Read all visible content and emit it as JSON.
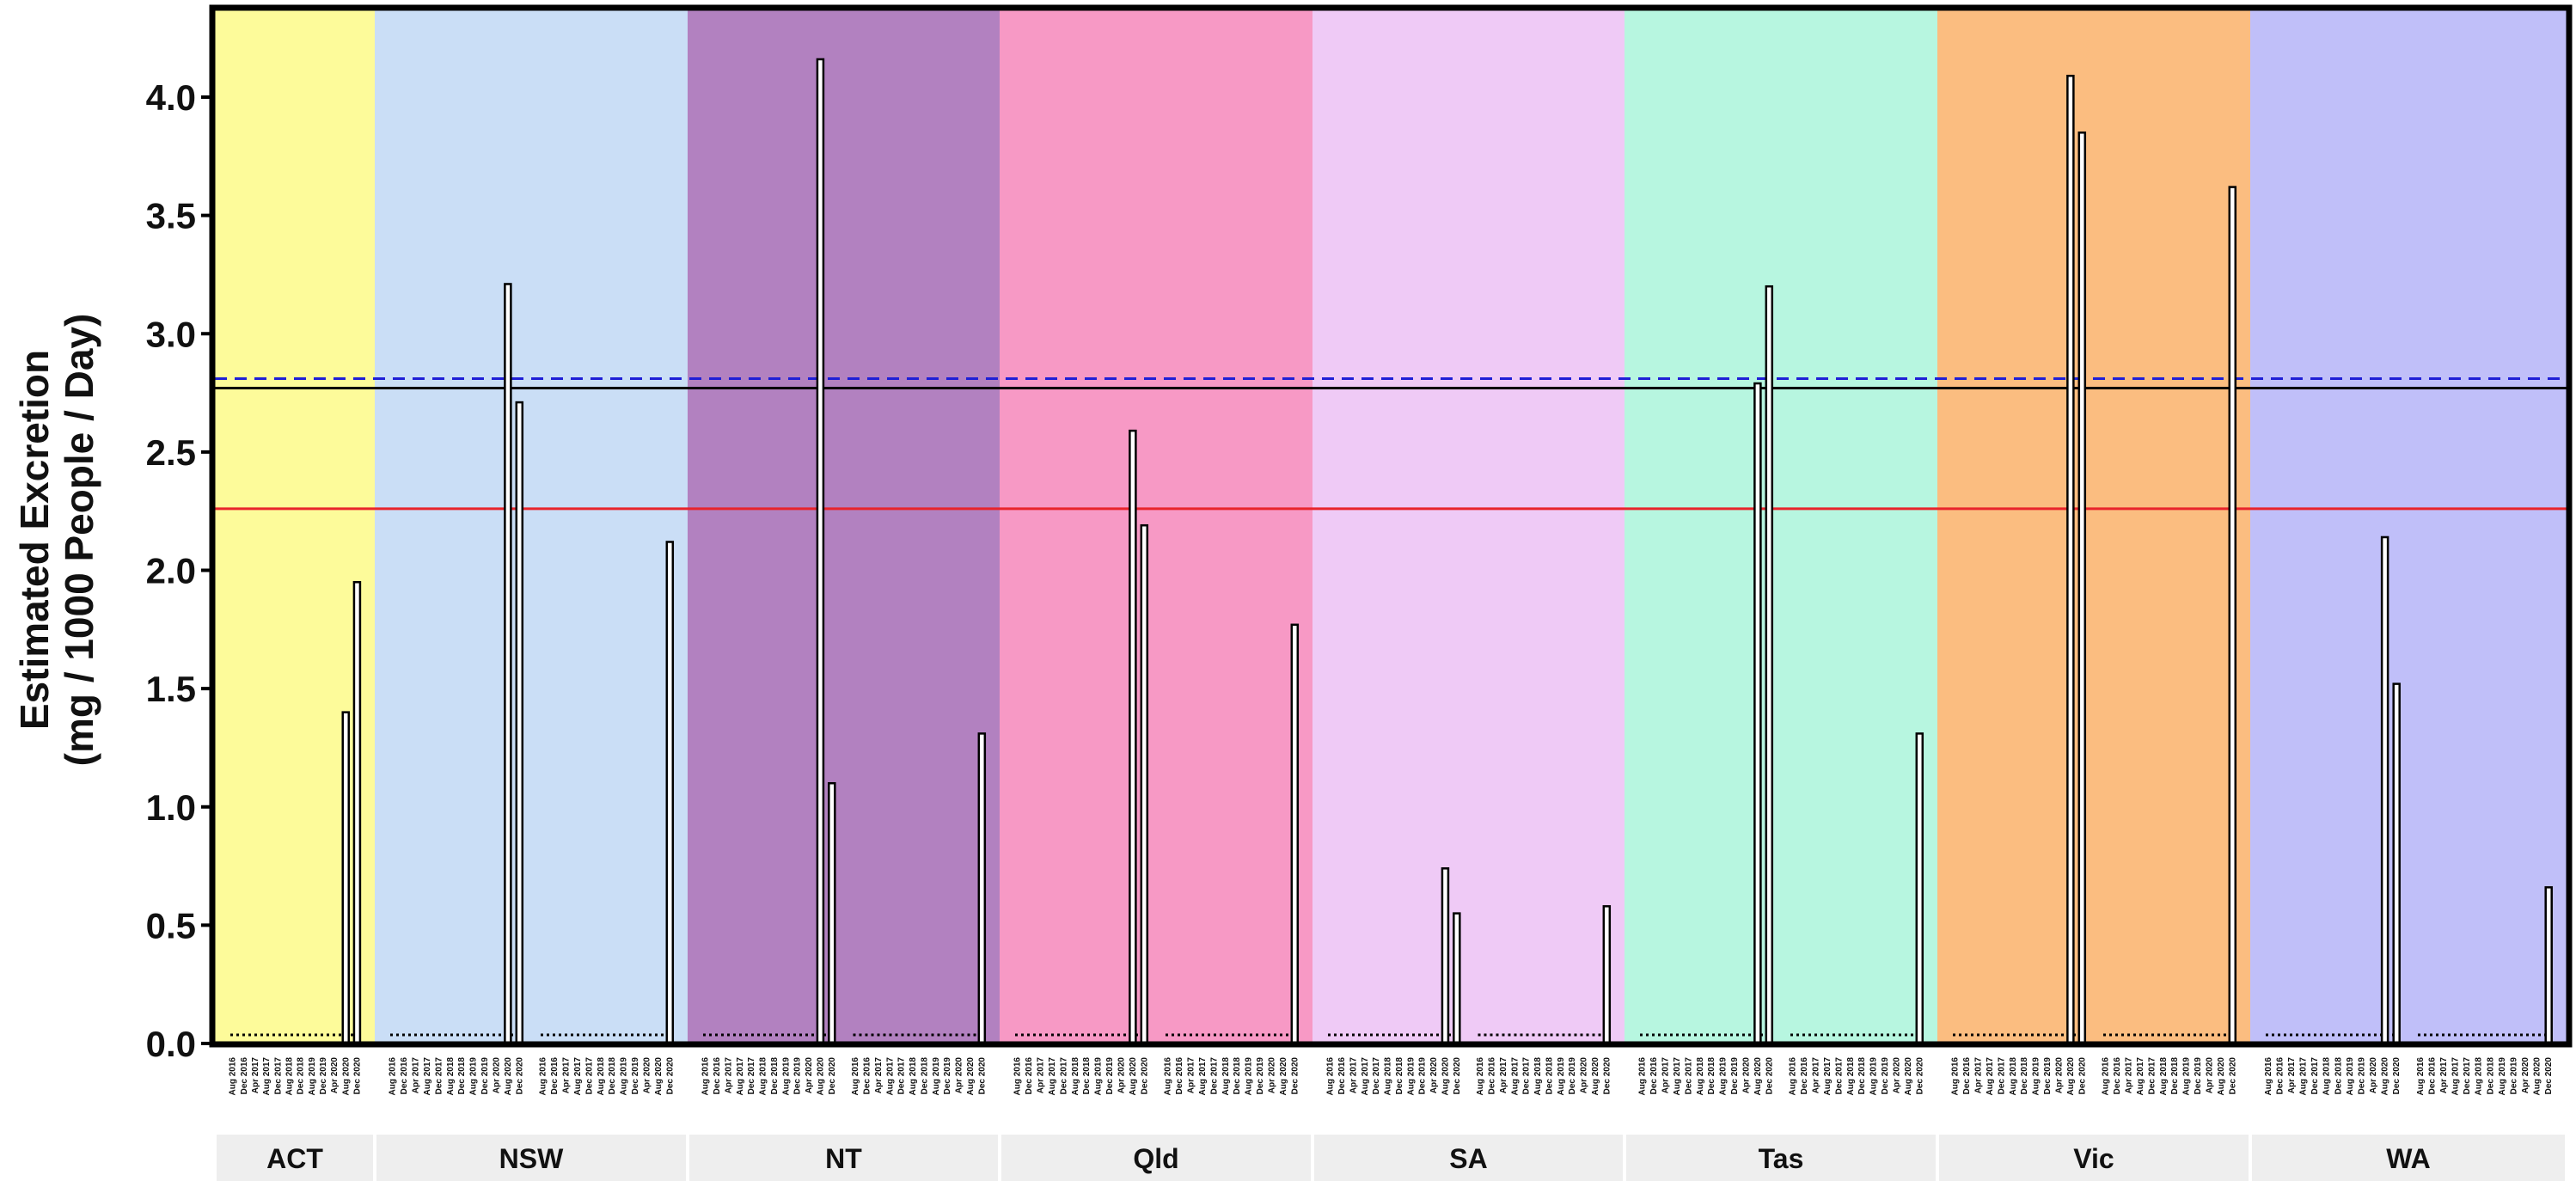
{
  "chart_data": {
    "type": "bar",
    "ylabel_line1": "Estimated Excretion",
    "ylabel_line2": "(mg / 1000 People / Day)",
    "ylim": [
      0,
      4.35
    ],
    "yticks": [
      "0.0",
      "0.5",
      "1.0",
      "1.5",
      "2.0",
      "2.5",
      "3.0",
      "3.5",
      "4.0"
    ],
    "ytick_values": [
      0,
      0.5,
      1.0,
      1.5,
      2.0,
      2.5,
      3.0,
      3.5,
      4.0
    ],
    "grid": false,
    "reference_lines": [
      {
        "style": "dashed",
        "color": "#1f1fd6",
        "y": 2.81
      },
      {
        "style": "solid",
        "color": "#000000",
        "y": 2.77
      },
      {
        "style": "solid",
        "color": "#e8242b",
        "y": 2.26
      }
    ],
    "x_tick_labels_capital": [
      "Aug 2016",
      "Dec 2016",
      "Apr 2017",
      "Aug 2017",
      "Dec 2017",
      "Aug 2018",
      "Dec 2018",
      "Aug 2019",
      "Dec 2019",
      "Apr 2020",
      "Aug 2020",
      "Dec 2020"
    ],
    "x_tick_labels_regional": [
      "Aug 2016",
      "Dec 2016",
      "Apr 2017",
      "Aug 2017",
      "Dec 2017",
      "Aug 2018",
      "Dec 2018",
      "Aug 2019",
      "Dec 2019",
      "Apr 2020",
      "Aug 2020",
      "Dec 2020"
    ],
    "panels": [
      {
        "label": "ACT",
        "color": "#fdfb9a",
        "groups": 1,
        "series": [
          {
            "group": "capital",
            "values": [
              0,
              0,
              0,
              0,
              0,
              0,
              0,
              0,
              0,
              0,
              1.4,
              1.95
            ]
          }
        ]
      },
      {
        "label": "NSW",
        "color": "#cadef6",
        "series": [
          {
            "group": "capital",
            "values": [
              0,
              0,
              0,
              0,
              0,
              0,
              0,
              0,
              0,
              0,
              3.21,
              2.71
            ]
          },
          {
            "group": "regional",
            "values": [
              0,
              0,
              0,
              0,
              0,
              0,
              0,
              0,
              0,
              0,
              0,
              2.12
            ]
          }
        ]
      },
      {
        "label": "NT",
        "color": "#b281c0",
        "series": [
          {
            "group": "capital",
            "values": [
              0,
              0,
              0,
              0,
              0,
              0,
              0,
              0,
              0,
              0,
              4.16,
              1.1
            ]
          },
          {
            "group": "regional",
            "values": [
              0,
              0,
              0,
              0,
              0,
              0,
              0,
              0,
              0,
              0,
              0,
              1.31
            ]
          }
        ]
      },
      {
        "label": "Qld",
        "color": "#f799c5",
        "series": [
          {
            "group": "capital",
            "values": [
              0,
              0,
              0,
              0,
              0,
              0,
              0,
              0,
              0,
              0,
              2.59,
              2.19
            ]
          },
          {
            "group": "regional",
            "values": [
              0,
              0,
              0,
              0,
              0,
              0,
              0,
              0,
              0,
              0,
              0,
              1.77
            ]
          }
        ]
      },
      {
        "label": "SA",
        "color": "#efcaf6",
        "series": [
          {
            "group": "capital",
            "values": [
              0,
              0,
              0,
              0,
              0,
              0,
              0,
              0,
              0,
              0,
              0.74,
              0.55
            ]
          },
          {
            "group": "regional",
            "values": [
              0,
              0,
              0,
              0,
              0,
              0,
              0,
              0,
              0,
              0,
              0,
              0.58
            ]
          }
        ]
      },
      {
        "label": "Tas",
        "color": "#b7f6e0",
        "series": [
          {
            "group": "capital",
            "values": [
              0,
              0,
              0,
              0,
              0,
              0,
              0,
              0,
              0,
              0,
              2.79,
              3.2
            ]
          },
          {
            "group": "regional",
            "values": [
              0,
              0,
              0,
              0,
              0,
              0,
              0,
              0,
              0,
              0,
              0,
              1.31
            ]
          }
        ]
      },
      {
        "label": "Vic",
        "color": "#fbbd80",
        "series": [
          {
            "group": "capital",
            "values": [
              0,
              0,
              0,
              0,
              0,
              0,
              0,
              0,
              0,
              0,
              4.09,
              3.85
            ]
          },
          {
            "group": "regional",
            "values": [
              0,
              0,
              0,
              0,
              0,
              0,
              0,
              0,
              0,
              0,
              0,
              3.62
            ]
          }
        ]
      },
      {
        "label": "WA",
        "color": "#c0bff9",
        "series": [
          {
            "group": "capital",
            "values": [
              0,
              0,
              0,
              0,
              0,
              0,
              0,
              0,
              0,
              0,
              2.14,
              1.52
            ]
          },
          {
            "group": "regional",
            "values": [
              0,
              0,
              0,
              0,
              0,
              0,
              0,
              0,
              0,
              0,
              0,
              0.66
            ]
          }
        ]
      }
    ]
  }
}
